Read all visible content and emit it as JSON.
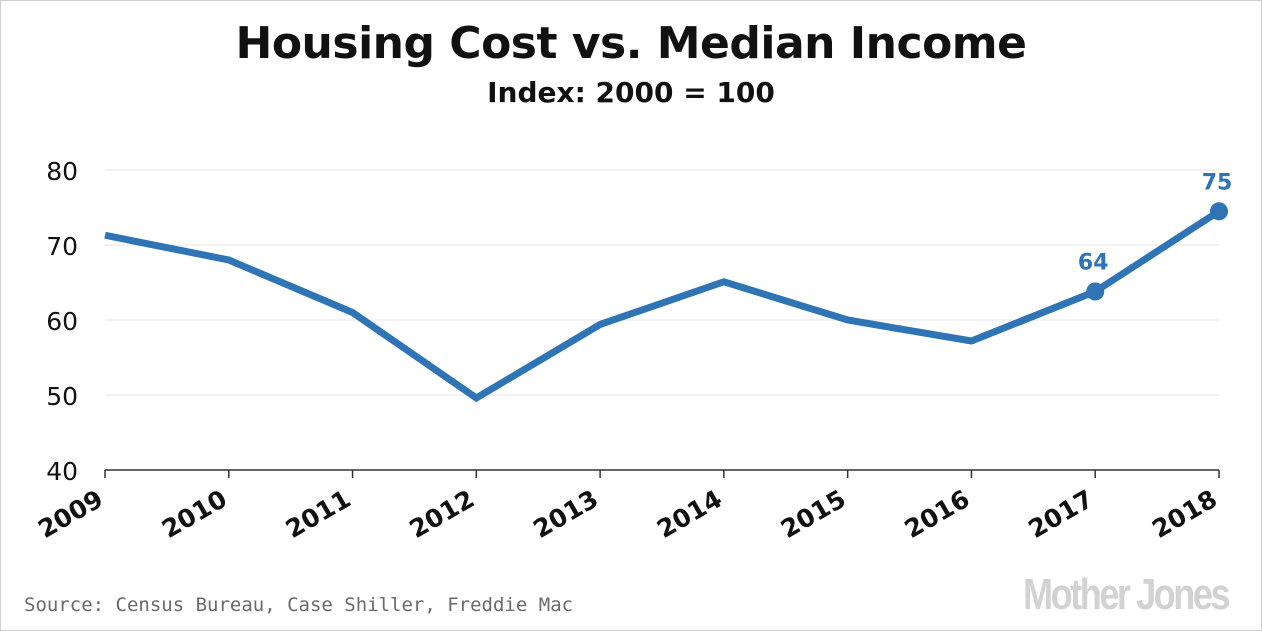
{
  "chart_data": {
    "type": "line",
    "title": "Housing Cost vs. Median Income",
    "subtitle": "Index: 2000 = 100",
    "xlabel": "",
    "ylabel": "",
    "categories": [
      "2009",
      "2010",
      "2011",
      "2012",
      "2013",
      "2014",
      "2015",
      "2016",
      "2017",
      "2018"
    ],
    "series": [
      {
        "values": [
          71.3,
          68.0,
          61.0,
          49.6,
          59.4,
          65.1,
          60.0,
          57.2,
          63.8,
          74.5
        ],
        "color": "#2f74b5"
      }
    ],
    "ylim": [
      40,
      80
    ],
    "yticks": [
      "40",
      "50",
      "60",
      "70",
      "80"
    ],
    "annotations": [
      {
        "category": "2017",
        "label": "64"
      },
      {
        "category": "2018",
        "label": "75"
      }
    ],
    "grid": true,
    "legend": "none"
  },
  "source": "Source: Census Bureau, Case Shiller, Freddie Mac",
  "brand": "Mother Jones"
}
